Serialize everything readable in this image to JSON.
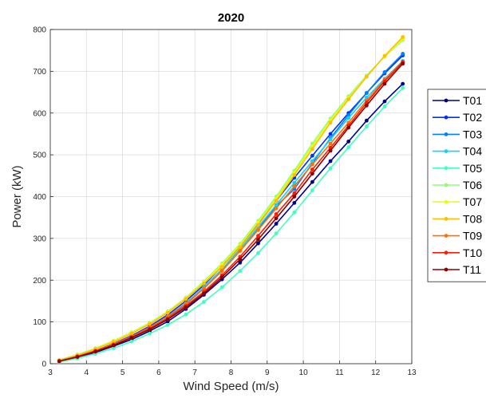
{
  "chart_data": {
    "type": "line",
    "title": "2020",
    "xlabel": "Wind Speed (m/s)",
    "ylabel": "Power (kW)",
    "xlim": [
      3,
      13
    ],
    "ylim": [
      0,
      800
    ],
    "xticks": [
      3,
      4,
      5,
      6,
      7,
      8,
      9,
      10,
      11,
      12,
      13
    ],
    "yticks": [
      0,
      100,
      200,
      300,
      400,
      500,
      600,
      700,
      800
    ],
    "grid": true,
    "legend_position": "outside-right",
    "x": [
      3.25,
      3.75,
      4.25,
      4.75,
      5.25,
      5.75,
      6.25,
      6.75,
      7.25,
      7.75,
      8.25,
      8.75,
      9.25,
      9.75,
      10.25,
      10.75,
      11.25,
      11.75,
      12.25,
      12.75
    ],
    "series": [
      {
        "name": "T01",
        "color": "#00008f",
        "values": [
          5,
          15,
          27,
          42,
          58,
          78,
          101,
          131,
          165,
          202,
          242,
          288,
          335,
          385,
          435,
          485,
          532,
          582,
          628,
          670
        ]
      },
      {
        "name": "T02",
        "color": "#0030ff",
        "values": [
          7,
          18,
          31,
          48,
          67,
          90,
          117,
          150,
          188,
          233,
          282,
          335,
          390,
          445,
          498,
          550,
          600,
          648,
          695,
          738
        ]
      },
      {
        "name": "T03",
        "color": "#0080ff",
        "values": [
          6,
          16,
          29,
          45,
          63,
          85,
          111,
          142,
          180,
          222,
          270,
          322,
          377,
          418,
          480,
          540,
          595,
          648,
          698,
          742
        ]
      },
      {
        "name": "T04",
        "color": "#10d0ff",
        "values": [
          6,
          17,
          30,
          46,
          64,
          87,
          113,
          145,
          183,
          226,
          275,
          327,
          380,
          433,
          485,
          537,
          588,
          637,
          682,
          725
        ]
      },
      {
        "name": "T05",
        "color": "#40ffc0",
        "values": [
          4,
          13,
          24,
          37,
          53,
          72,
          93,
          118,
          148,
          183,
          222,
          265,
          312,
          362,
          415,
          468,
          518,
          568,
          616,
          660
        ]
      },
      {
        "name": "T06",
        "color": "#90ff70",
        "values": [
          9,
          22,
          37,
          55,
          75,
          98,
          125,
          158,
          197,
          240,
          287,
          342,
          400,
          462,
          527,
          587,
          640,
          690,
          735,
          775
        ]
      },
      {
        "name": "T07",
        "color": "#f0ff00",
        "values": [
          8,
          21,
          36,
          54,
          74,
          97,
          124,
          157,
          195,
          237,
          284,
          338,
          395,
          457,
          520,
          582,
          636,
          688,
          736,
          778
        ]
      },
      {
        "name": "T08",
        "color": "#ffbf00",
        "values": [
          8,
          20,
          35,
          52,
          72,
          95,
          122,
          155,
          192,
          232,
          279,
          332,
          390,
          452,
          514,
          577,
          633,
          687,
          737,
          782
        ]
      },
      {
        "name": "T09",
        "color": "#ff7000",
        "values": [
          7,
          18,
          31,
          47,
          65,
          87,
          113,
          144,
          180,
          222,
          270,
          320,
          372,
          425,
          477,
          527,
          577,
          630,
          680,
          723
        ]
      },
      {
        "name": "T10",
        "color": "#ff1a00",
        "values": [
          6,
          17,
          30,
          45,
          63,
          84,
          108,
          138,
          172,
          212,
          256,
          306,
          358,
          408,
          465,
          517,
          570,
          625,
          676,
          722
        ]
      },
      {
        "name": "T11",
        "color": "#8f0000",
        "values": [
          6,
          16,
          29,
          44,
          62,
          82,
          106,
          135,
          168,
          207,
          250,
          297,
          348,
          400,
          455,
          510,
          565,
          618,
          670,
          718
        ]
      }
    ]
  }
}
